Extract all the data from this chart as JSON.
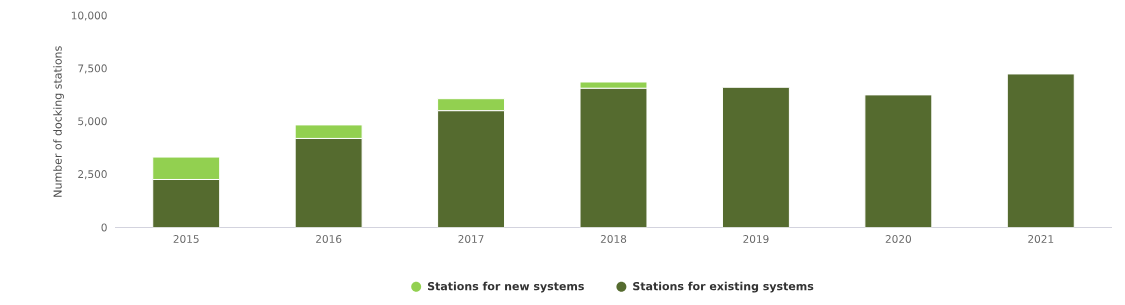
{
  "chart_data": {
    "type": "bar",
    "stacked": true,
    "ylabel": "Number of docking stations",
    "categories": [
      "2015",
      "2016",
      "2017",
      "2018",
      "2019",
      "2020",
      "2021"
    ],
    "series": [
      {
        "name": "Stations for existing systems",
        "color": "#556b2f",
        "values": [
          2270,
          4210,
          5520,
          6580,
          6630,
          6270,
          7260
        ]
      },
      {
        "name": "Stations for new systems",
        "color": "#92d050",
        "values": [
          1060,
          640,
          570,
          300,
          null,
          null,
          null
        ]
      }
    ],
    "ylim": [
      0,
      10000
    ],
    "yticks": [
      {
        "value": 0,
        "label": "0"
      },
      {
        "value": 2500,
        "label": "2,500"
      },
      {
        "value": 5000,
        "label": "5,000"
      },
      {
        "value": 7500,
        "label": "7,500"
      },
      {
        "value": 10000,
        "label": "10,000"
      }
    ],
    "grid": false,
    "legend": "bottom"
  }
}
